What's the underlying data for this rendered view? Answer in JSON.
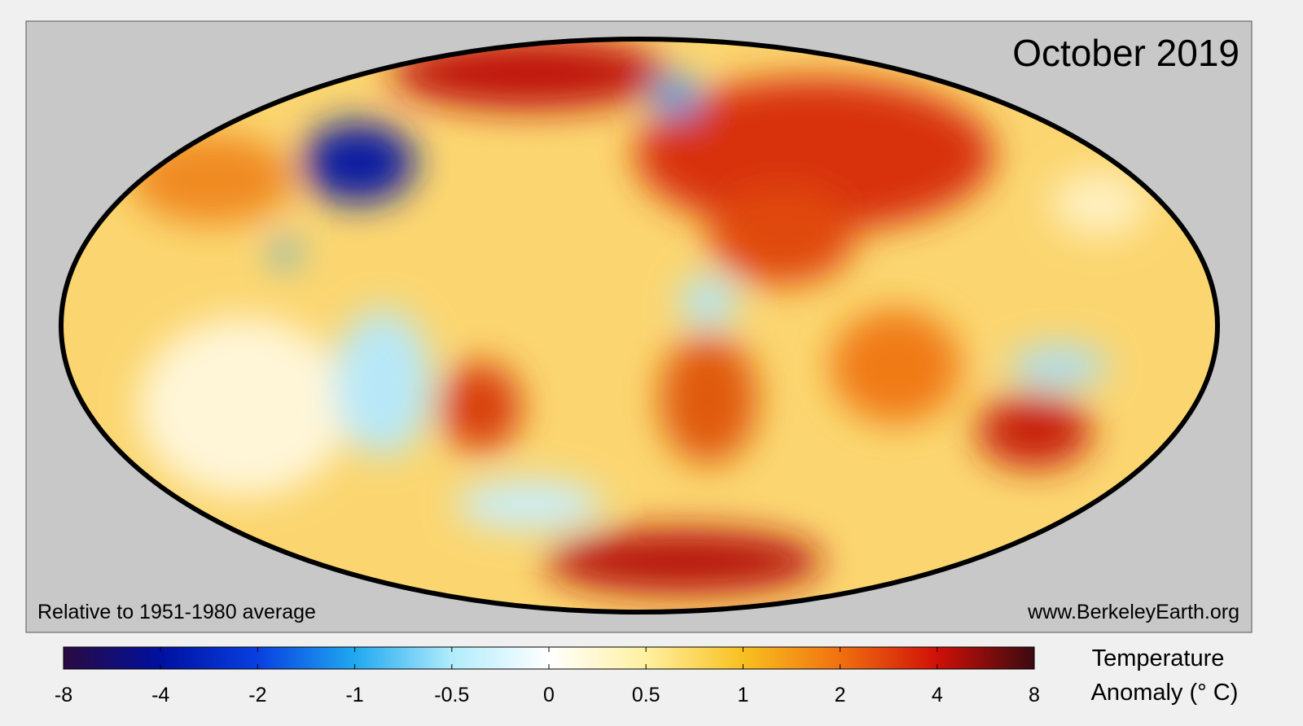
{
  "title": "October 2019",
  "note": "Relative to 1951-1980 average",
  "source": "www.BerkeleyEarth.org",
  "legend": {
    "title_lines": [
      "Temperature",
      "Anomaly (° C)"
    ],
    "ticks": [
      -8,
      -4,
      -2,
      -1,
      -0.5,
      0,
      0.5,
      1,
      2,
      4,
      8
    ],
    "colors": [
      "#2a0a40",
      "#0010a0",
      "#0840e0",
      "#20a8f0",
      "#b0ecfc",
      "#ffffff",
      "#fff0a0",
      "#f8c020",
      "#f07010",
      "#d01008",
      "#3a0a10"
    ]
  }
}
